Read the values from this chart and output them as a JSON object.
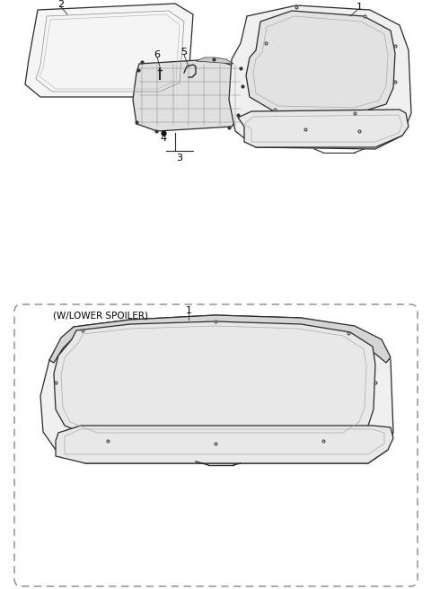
{
  "background_color": "#ffffff",
  "line_color": "#2a2a2a",
  "fig_width": 4.8,
  "fig_height": 6.56,
  "dpi": 100
}
